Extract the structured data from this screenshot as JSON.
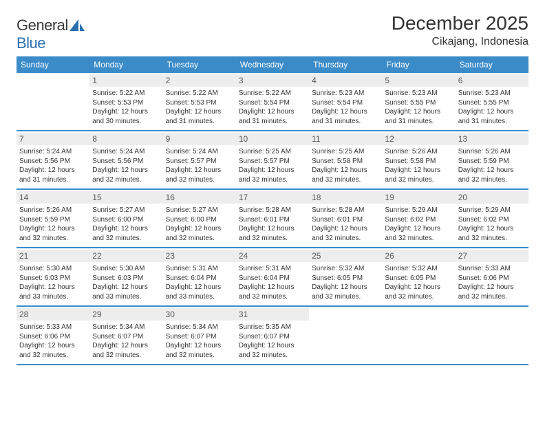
{
  "brand": {
    "name_a": "General",
    "name_b": "Blue"
  },
  "title": "December 2025",
  "location": "Cikajang, Indonesia",
  "colors": {
    "header_bg": "#3b8bc9",
    "header_text": "#ffffff",
    "daynum_bg": "#ededed",
    "daynum_text": "#595959",
    "body_text": "#333333",
    "row_border": "#3b8bc9",
    "brand_accent": "#2a6fb0"
  },
  "fonts": {
    "title_size_pt": 21,
    "location_size_pt": 12,
    "header_size_pt": 9,
    "body_size_pt": 7.5
  },
  "day_headers": [
    "Sunday",
    "Monday",
    "Tuesday",
    "Wednesday",
    "Thursday",
    "Friday",
    "Saturday"
  ],
  "weeks": [
    [
      {
        "num": "",
        "sr": "",
        "ss": "",
        "dl": ""
      },
      {
        "num": "1",
        "sr": "Sunrise: 5:22 AM",
        "ss": "Sunset: 5:53 PM",
        "dl": "Daylight: 12 hours and 30 minutes."
      },
      {
        "num": "2",
        "sr": "Sunrise: 5:22 AM",
        "ss": "Sunset: 5:53 PM",
        "dl": "Daylight: 12 hours and 31 minutes."
      },
      {
        "num": "3",
        "sr": "Sunrise: 5:22 AM",
        "ss": "Sunset: 5:54 PM",
        "dl": "Daylight: 12 hours and 31 minutes."
      },
      {
        "num": "4",
        "sr": "Sunrise: 5:23 AM",
        "ss": "Sunset: 5:54 PM",
        "dl": "Daylight: 12 hours and 31 minutes."
      },
      {
        "num": "5",
        "sr": "Sunrise: 5:23 AM",
        "ss": "Sunset: 5:55 PM",
        "dl": "Daylight: 12 hours and 31 minutes."
      },
      {
        "num": "6",
        "sr": "Sunrise: 5:23 AM",
        "ss": "Sunset: 5:55 PM",
        "dl": "Daylight: 12 hours and 31 minutes."
      }
    ],
    [
      {
        "num": "7",
        "sr": "Sunrise: 5:24 AM",
        "ss": "Sunset: 5:56 PM",
        "dl": "Daylight: 12 hours and 31 minutes."
      },
      {
        "num": "8",
        "sr": "Sunrise: 5:24 AM",
        "ss": "Sunset: 5:56 PM",
        "dl": "Daylight: 12 hours and 32 minutes."
      },
      {
        "num": "9",
        "sr": "Sunrise: 5:24 AM",
        "ss": "Sunset: 5:57 PM",
        "dl": "Daylight: 12 hours and 32 minutes."
      },
      {
        "num": "10",
        "sr": "Sunrise: 5:25 AM",
        "ss": "Sunset: 5:57 PM",
        "dl": "Daylight: 12 hours and 32 minutes."
      },
      {
        "num": "11",
        "sr": "Sunrise: 5:25 AM",
        "ss": "Sunset: 5:58 PM",
        "dl": "Daylight: 12 hours and 32 minutes."
      },
      {
        "num": "12",
        "sr": "Sunrise: 5:26 AM",
        "ss": "Sunset: 5:58 PM",
        "dl": "Daylight: 12 hours and 32 minutes."
      },
      {
        "num": "13",
        "sr": "Sunrise: 5:26 AM",
        "ss": "Sunset: 5:59 PM",
        "dl": "Daylight: 12 hours and 32 minutes."
      }
    ],
    [
      {
        "num": "14",
        "sr": "Sunrise: 5:26 AM",
        "ss": "Sunset: 5:59 PM",
        "dl": "Daylight: 12 hours and 32 minutes."
      },
      {
        "num": "15",
        "sr": "Sunrise: 5:27 AM",
        "ss": "Sunset: 6:00 PM",
        "dl": "Daylight: 12 hours and 32 minutes."
      },
      {
        "num": "16",
        "sr": "Sunrise: 5:27 AM",
        "ss": "Sunset: 6:00 PM",
        "dl": "Daylight: 12 hours and 32 minutes."
      },
      {
        "num": "17",
        "sr": "Sunrise: 5:28 AM",
        "ss": "Sunset: 6:01 PM",
        "dl": "Daylight: 12 hours and 32 minutes."
      },
      {
        "num": "18",
        "sr": "Sunrise: 5:28 AM",
        "ss": "Sunset: 6:01 PM",
        "dl": "Daylight: 12 hours and 32 minutes."
      },
      {
        "num": "19",
        "sr": "Sunrise: 5:29 AM",
        "ss": "Sunset: 6:02 PM",
        "dl": "Daylight: 12 hours and 32 minutes."
      },
      {
        "num": "20",
        "sr": "Sunrise: 5:29 AM",
        "ss": "Sunset: 6:02 PM",
        "dl": "Daylight: 12 hours and 32 minutes."
      }
    ],
    [
      {
        "num": "21",
        "sr": "Sunrise: 5:30 AM",
        "ss": "Sunset: 6:03 PM",
        "dl": "Daylight: 12 hours and 33 minutes."
      },
      {
        "num": "22",
        "sr": "Sunrise: 5:30 AM",
        "ss": "Sunset: 6:03 PM",
        "dl": "Daylight: 12 hours and 33 minutes."
      },
      {
        "num": "23",
        "sr": "Sunrise: 5:31 AM",
        "ss": "Sunset: 6:04 PM",
        "dl": "Daylight: 12 hours and 33 minutes."
      },
      {
        "num": "24",
        "sr": "Sunrise: 5:31 AM",
        "ss": "Sunset: 6:04 PM",
        "dl": "Daylight: 12 hours and 32 minutes."
      },
      {
        "num": "25",
        "sr": "Sunrise: 5:32 AM",
        "ss": "Sunset: 6:05 PM",
        "dl": "Daylight: 12 hours and 32 minutes."
      },
      {
        "num": "26",
        "sr": "Sunrise: 5:32 AM",
        "ss": "Sunset: 6:05 PM",
        "dl": "Daylight: 12 hours and 32 minutes."
      },
      {
        "num": "27",
        "sr": "Sunrise: 5:33 AM",
        "ss": "Sunset: 6:06 PM",
        "dl": "Daylight: 12 hours and 32 minutes."
      }
    ],
    [
      {
        "num": "28",
        "sr": "Sunrise: 5:33 AM",
        "ss": "Sunset: 6:06 PM",
        "dl": "Daylight: 12 hours and 32 minutes."
      },
      {
        "num": "29",
        "sr": "Sunrise: 5:34 AM",
        "ss": "Sunset: 6:07 PM",
        "dl": "Daylight: 12 hours and 32 minutes."
      },
      {
        "num": "30",
        "sr": "Sunrise: 5:34 AM",
        "ss": "Sunset: 6:07 PM",
        "dl": "Daylight: 12 hours and 32 minutes."
      },
      {
        "num": "31",
        "sr": "Sunrise: 5:35 AM",
        "ss": "Sunset: 6:07 PM",
        "dl": "Daylight: 12 hours and 32 minutes."
      },
      {
        "num": "",
        "sr": "",
        "ss": "",
        "dl": ""
      },
      {
        "num": "",
        "sr": "",
        "ss": "",
        "dl": ""
      },
      {
        "num": "",
        "sr": "",
        "ss": "",
        "dl": ""
      }
    ]
  ]
}
